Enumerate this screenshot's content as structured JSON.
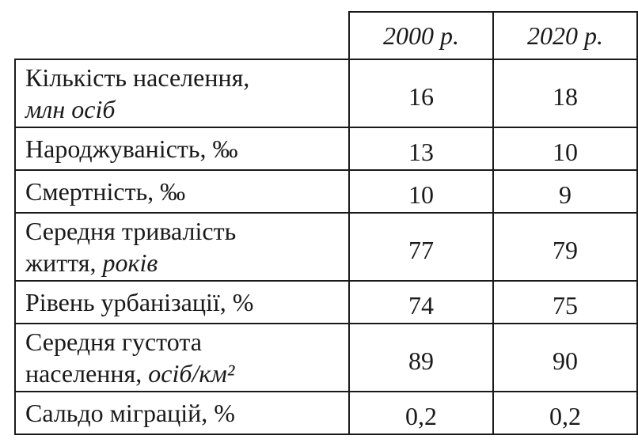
{
  "table": {
    "header": [
      "2000 р.",
      "2020 р."
    ],
    "rows": [
      {
        "label": [
          [
            {
              "text": "Кількість населення,"
            }
          ],
          [
            {
              "text": "млн осіб",
              "italic": true
            }
          ]
        ],
        "values": [
          "16",
          "18"
        ]
      },
      {
        "label": [
          [
            {
              "text": "Народжуваність, ‰"
            }
          ]
        ],
        "values": [
          "13",
          "10"
        ]
      },
      {
        "label": [
          [
            {
              "text": "Смертність, ‰"
            }
          ]
        ],
        "values": [
          "10",
          "9"
        ]
      },
      {
        "label": [
          [
            {
              "text": "Середня тривалість"
            }
          ],
          [
            {
              "text": "життя, "
            },
            {
              "text": "років",
              "italic": true
            }
          ]
        ],
        "values": [
          "77",
          "79"
        ]
      },
      {
        "label": [
          [
            {
              "text": "Рівень урбанізації, %"
            }
          ]
        ],
        "values": [
          "74",
          "75"
        ]
      },
      {
        "label": [
          [
            {
              "text": "Середня густота"
            }
          ],
          [
            {
              "text": "населення, "
            },
            {
              "text": "осіб/км²",
              "italic": true
            }
          ]
        ],
        "values": [
          "89",
          "90"
        ]
      },
      {
        "label": [
          [
            {
              "text": "Сальдо міграцій, %"
            }
          ]
        ],
        "values": [
          "0,2",
          "0,2"
        ]
      }
    ]
  }
}
